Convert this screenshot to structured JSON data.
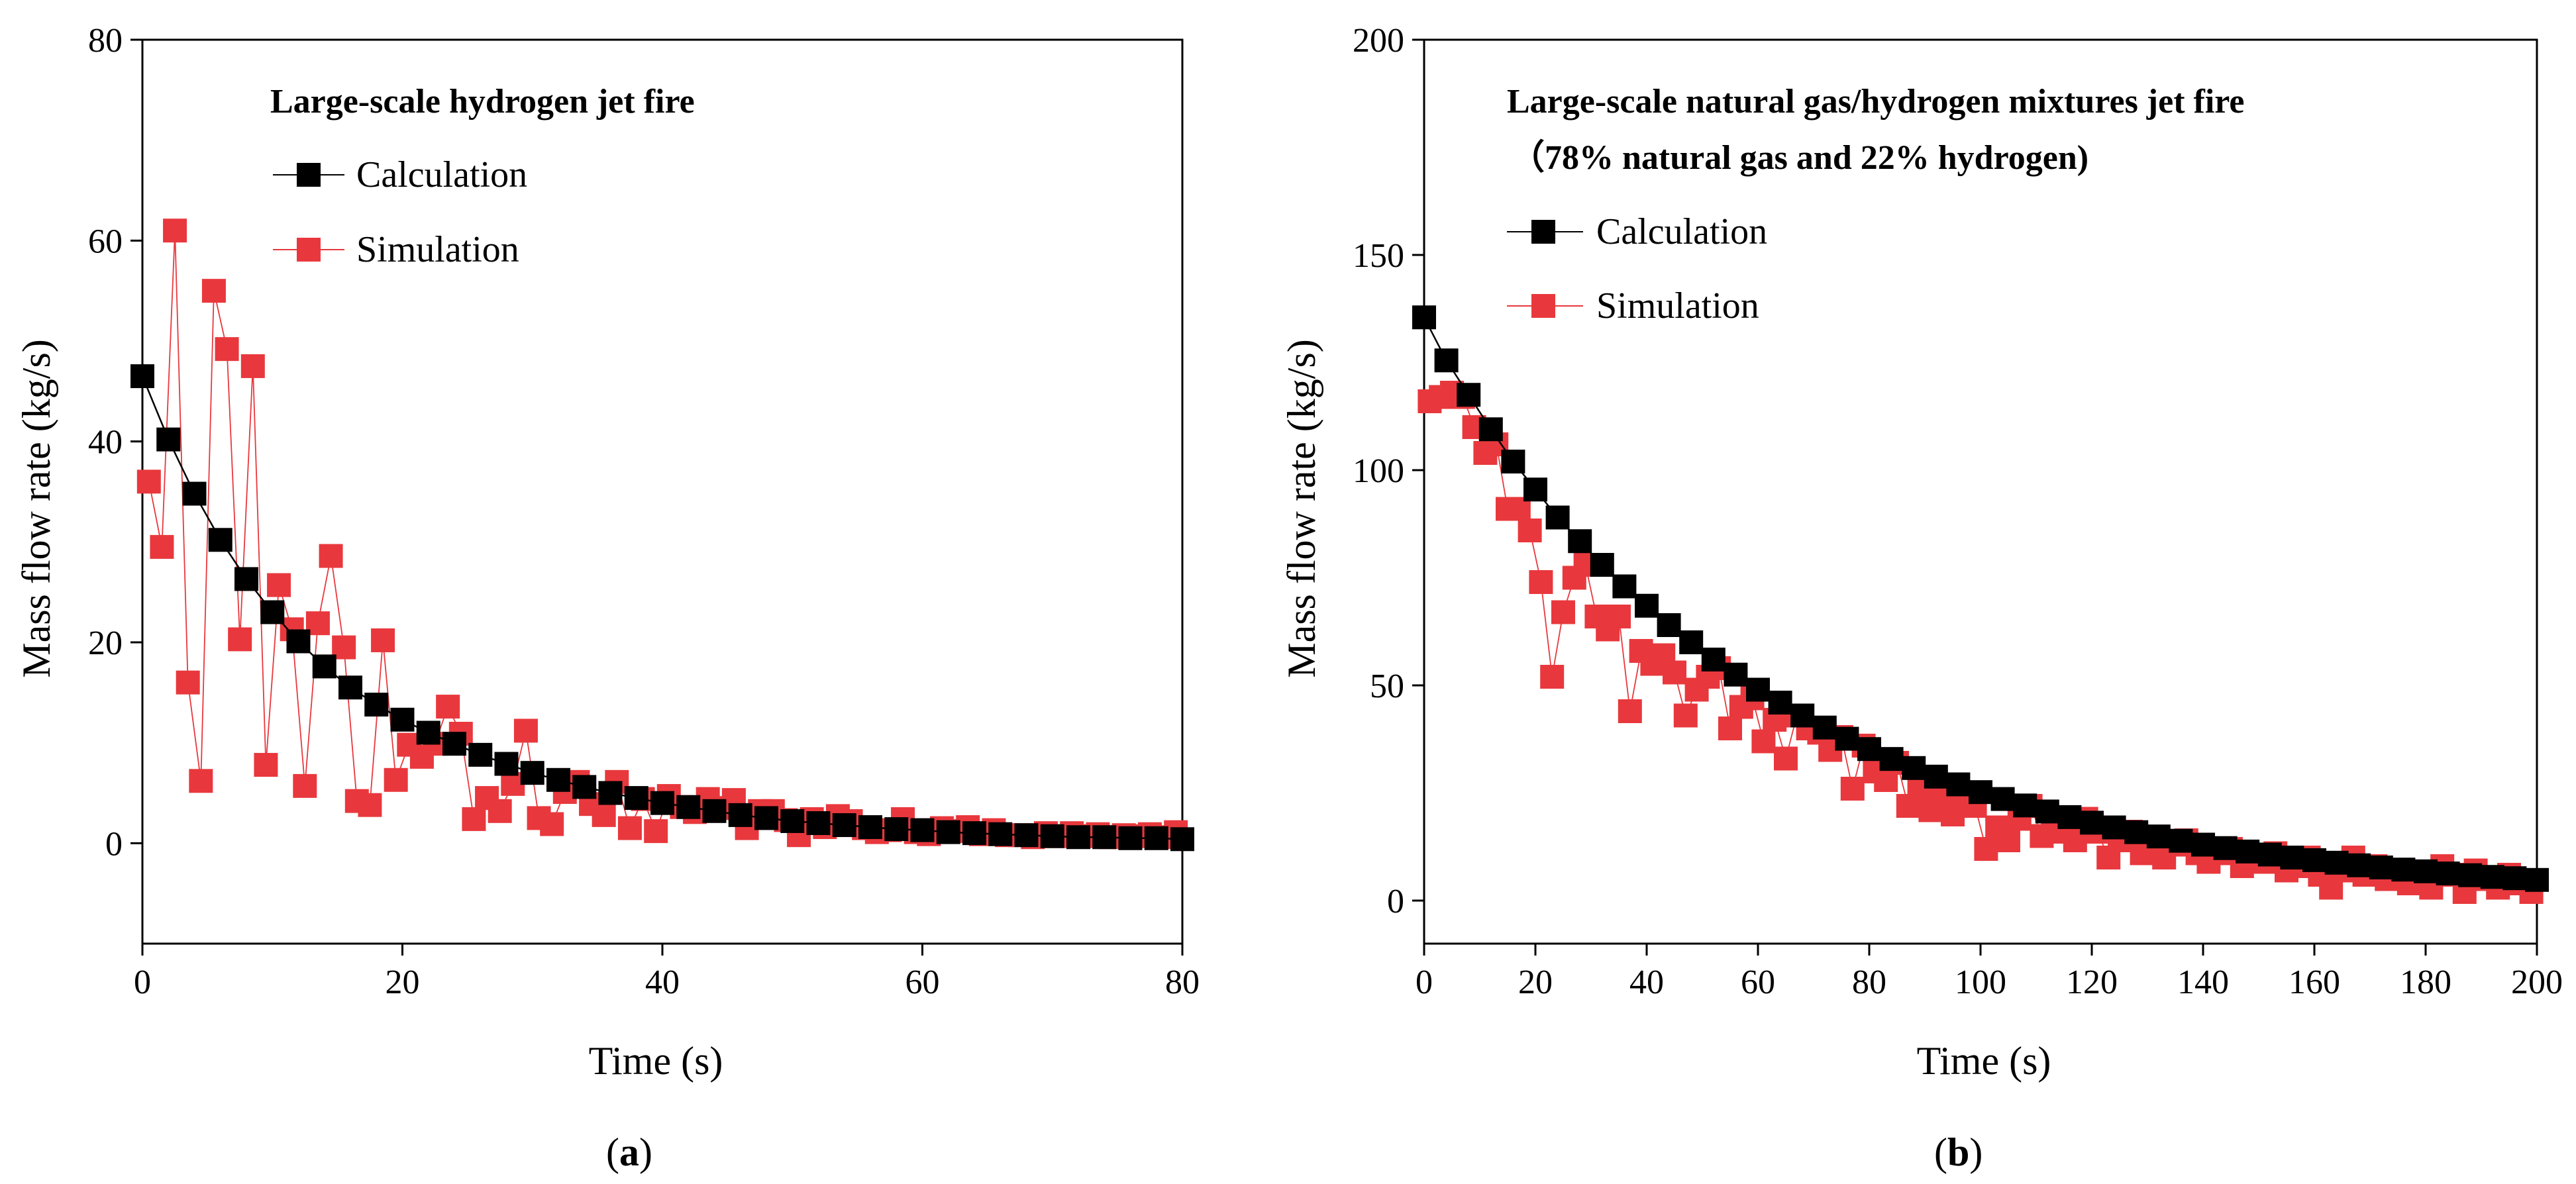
{
  "colors": {
    "calc": "#000000",
    "sim": "#e8383d",
    "axis": "#000000"
  },
  "chart_data": [
    {
      "type": "line",
      "panel_label": {
        "open": "(",
        "letter": "a",
        "close": ")"
      },
      "title_lines": [
        "Large-scale hydrogen jet fire"
      ],
      "xlabel": "Time (s)",
      "ylabel": "Mass flow rate (kg/s)",
      "xlim": [
        0,
        80
      ],
      "ylim": [
        -10,
        80
      ],
      "xticks": [
        0,
        20,
        40,
        60,
        80
      ],
      "yticks": [
        0,
        20,
        40,
        60,
        80
      ],
      "legend_position": "top-left",
      "series": [
        {
          "name": "Calculation",
          "x": [
            0,
            2,
            4,
            6,
            8,
            10,
            12,
            14,
            16,
            18,
            20,
            22,
            24,
            26,
            28,
            30,
            32,
            34,
            36,
            38,
            40,
            42,
            44,
            46,
            48,
            50,
            52,
            54,
            56,
            58,
            60,
            62,
            64,
            66,
            68,
            70,
            72,
            74,
            76,
            78,
            80
          ],
          "y": [
            46.5,
            40.2,
            34.8,
            30.2,
            26.3,
            23.0,
            20.1,
            17.6,
            15.5,
            13.8,
            12.3,
            11.0,
            9.9,
            8.8,
            7.9,
            7.0,
            6.3,
            5.6,
            5.0,
            4.5,
            4.0,
            3.6,
            3.2,
            2.8,
            2.5,
            2.2,
            2.0,
            1.8,
            1.6,
            1.4,
            1.3,
            1.1,
            1.0,
            0.9,
            0.8,
            0.7,
            0.6,
            0.6,
            0.5,
            0.5,
            0.4
          ]
        },
        {
          "name": "Simulation",
          "x": [
            0.5,
            1.5,
            2.5,
            3.5,
            4.5,
            5.5,
            6.5,
            7.5,
            8.5,
            9.5,
            10.5,
            11.5,
            12.5,
            13.5,
            14.5,
            15.5,
            16.5,
            17.5,
            18.5,
            19.5,
            20.5,
            21.5,
            22.5,
            23.5,
            24.5,
            25.5,
            26.5,
            27.5,
            28.5,
            29.5,
            30.5,
            31.5,
            32.5,
            33.5,
            34.5,
            35.5,
            36.5,
            37.5,
            38.5,
            39.5,
            40.5,
            41.5,
            42.5,
            43.5,
            44.5,
            45.5,
            46.5,
            47.5,
            48.5,
            49.5,
            50.5,
            51.5,
            52.5,
            53.5,
            54.5,
            55.5,
            56.5,
            57.5,
            58.5,
            59.5,
            60.5,
            61.5,
            62.5,
            63.5,
            64.5,
            65.5,
            66.5,
            67.5,
            68.5,
            69.5,
            70.5,
            71.5,
            72.5,
            73.5,
            74.5,
            75.5,
            76.5,
            77.5,
            78.5,
            79.5
          ],
          "y": [
            36,
            29.5,
            61,
            16,
            6.2,
            55,
            49.2,
            20.3,
            47.5,
            7.8,
            25.7,
            21.3,
            5.7,
            21.9,
            28.6,
            19.5,
            4.2,
            3.8,
            20.2,
            6.3,
            9.8,
            8.6,
            9.9,
            13.6,
            10.9,
            2.4,
            4.5,
            3.2,
            5.9,
            11.2,
            2.5,
            1.9,
            5.1,
            6.1,
            3.9,
            2.8,
            6.1,
            1.5,
            4.4,
            1.2,
            4.7,
            3.6,
            3.1,
            4.4,
            3.5,
            4.3,
            1.5,
            3.2,
            3.2,
            2.3,
            0.8,
            2.4,
            1.6,
            2.7,
            2.2,
            1.5,
            1.1,
            1.3,
            2.4,
            1.1,
            0.9,
            1.5,
            1.2,
            1.6,
            0.9,
            1.3,
            0.8,
            0.8,
            0.6,
            1.0,
            0.7,
            1.0,
            0.7,
            0.9,
            0.6,
            0.8,
            0.7,
            0.9,
            0.6,
            1.1
          ]
        }
      ]
    },
    {
      "type": "line",
      "panel_label": {
        "open": "(",
        "letter": "b",
        "close": ")"
      },
      "title_lines": [
        "Large-scale natural gas/hydrogen mixtures jet fire",
        "（78% natural gas and 22% hydrogen)"
      ],
      "xlabel": "Time (s)",
      "ylabel": "Mass flow rate (kg/s)",
      "xlim": [
        0,
        200
      ],
      "ylim": [
        -10,
        200
      ],
      "xticks": [
        0,
        20,
        40,
        60,
        80,
        100,
        120,
        140,
        160,
        180,
        200
      ],
      "yticks": [
        0,
        50,
        100,
        150,
        200
      ],
      "legend_position": "top-left",
      "series": [
        {
          "name": "Calculation",
          "x": [
            0,
            4,
            8,
            12,
            16,
            20,
            24,
            28,
            32,
            36,
            40,
            44,
            48,
            52,
            56,
            60,
            64,
            68,
            72,
            76,
            80,
            84,
            88,
            92,
            96,
            100,
            104,
            108,
            112,
            116,
            120,
            124,
            128,
            132,
            136,
            140,
            144,
            148,
            152,
            156,
            160,
            164,
            168,
            172,
            176,
            180,
            184,
            188,
            192,
            196,
            200
          ],
          "y": [
            135.5,
            125.5,
            117.5,
            109.5,
            102,
            95.5,
            89,
            83.5,
            78,
            73,
            68.5,
            64,
            60,
            56,
            52.5,
            49,
            46,
            43,
            40.2,
            37.6,
            35.2,
            32.9,
            30.8,
            28.8,
            27,
            25.2,
            23.6,
            22.1,
            20.7,
            19.4,
            18.1,
            17,
            15.9,
            14.9,
            13.9,
            13,
            12.2,
            11.4,
            10.7,
            10,
            9.4,
            8.8,
            8.2,
            7.7,
            7.2,
            6.8,
            6.3,
            5.9,
            5.5,
            5.2,
            4.8
          ]
        },
        {
          "name": "Simulation",
          "x": [
            1,
            3,
            5,
            7,
            9,
            11,
            13,
            15,
            17,
            19,
            21,
            23,
            25,
            27,
            29,
            31,
            33,
            35,
            37,
            39,
            41,
            43,
            45,
            47,
            49,
            51,
            53,
            55,
            57,
            59,
            61,
            63,
            65,
            67,
            69,
            71,
            73,
            75,
            77,
            79,
            81,
            83,
            85,
            87,
            89,
            91,
            93,
            95,
            97,
            99,
            101,
            103,
            105,
            107,
            109,
            111,
            113,
            115,
            117,
            119,
            121,
            123,
            125,
            127,
            129,
            131,
            133,
            135,
            137,
            139,
            141,
            143,
            145,
            147,
            149,
            151,
            153,
            155,
            157,
            159,
            161,
            163,
            165,
            167,
            169,
            171,
            173,
            175,
            177,
            179,
            181,
            183,
            185,
            187,
            189,
            191,
            193,
            195,
            197,
            199
          ],
          "y": [
            116,
            117,
            118,
            117,
            110,
            104,
            106,
            91,
            91,
            86,
            74,
            52,
            67,
            75,
            78,
            66,
            63,
            66,
            44,
            58,
            55,
            57,
            53,
            43,
            49,
            52,
            54,
            40,
            45,
            47,
            37,
            42,
            33,
            43,
            40,
            39,
            35,
            38,
            26,
            36,
            30,
            28,
            32,
            22,
            26,
            21,
            24,
            20,
            25,
            22,
            12,
            17,
            14,
            19,
            22,
            15,
            16,
            18,
            14,
            19,
            16,
            10,
            14,
            16,
            11,
            13,
            10,
            13,
            14,
            11,
            9,
            11,
            12,
            8,
            10,
            9,
            11,
            7,
            8,
            10,
            6,
            3,
            7,
            10,
            6,
            8,
            5,
            7,
            4,
            6,
            3,
            8,
            6,
            2,
            7,
            5,
            3,
            6,
            4,
            2
          ]
        }
      ]
    }
  ]
}
